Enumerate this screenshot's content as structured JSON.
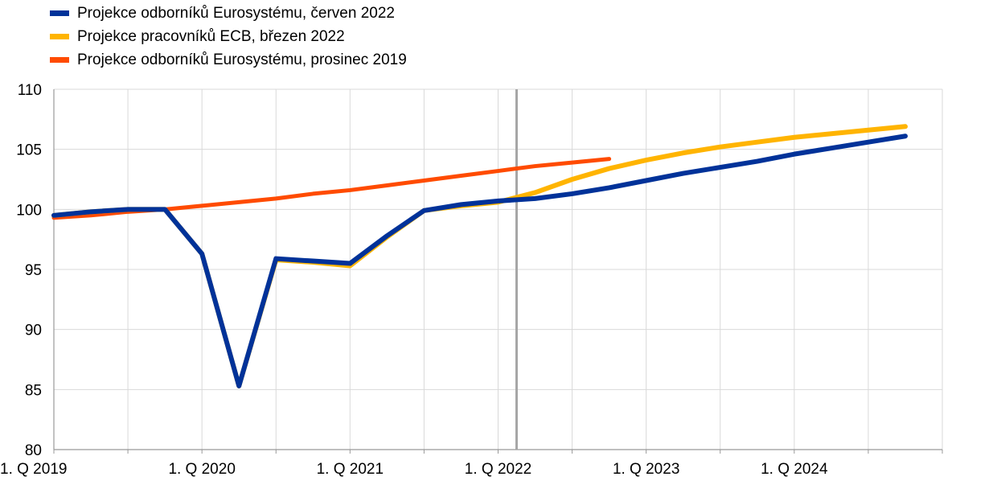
{
  "chart_data": {
    "type": "line",
    "x": [
      "2019Q1",
      "2019Q2",
      "2019Q3",
      "2019Q4",
      "2020Q1",
      "2020Q2",
      "2020Q3",
      "2020Q4",
      "2021Q1",
      "2021Q2",
      "2021Q3",
      "2021Q4",
      "2022Q1",
      "2022Q2",
      "2022Q3",
      "2022Q4",
      "2023Q1",
      "2023Q2",
      "2023Q3",
      "2023Q4",
      "2024Q1",
      "2024Q2",
      "2024Q3",
      "2024Q4"
    ],
    "x_tick_labels": [
      "1. Q 2019",
      "1. Q 2020",
      "1. Q 2021",
      "1. Q 2022",
      "1. Q 2023",
      "1. Q 2024"
    ],
    "y_tick_labels": [
      "80",
      "85",
      "90",
      "95",
      "100",
      "105",
      "110"
    ],
    "ylim": [
      80,
      110
    ],
    "vertical_marker_x": "2022Q2",
    "grid": true,
    "legend_position": "top-left",
    "series": [
      {
        "name": "Projekce odborníků Eurosystému, červen 2022",
        "color": "#003299",
        "values": [
          99.5,
          99.8,
          100.0,
          100.0,
          96.3,
          85.3,
          95.9,
          95.7,
          95.5,
          97.8,
          99.9,
          100.4,
          100.7,
          100.9,
          101.3,
          101.8,
          102.4,
          103.0,
          103.5,
          104.0,
          104.6,
          105.1,
          105.6,
          106.1
        ]
      },
      {
        "name": "Projekce pracovníků ECB, březen 2022",
        "color": "#FFB400",
        "values": [
          99.5,
          99.8,
          100.0,
          100.0,
          96.3,
          85.3,
          95.8,
          95.6,
          95.3,
          97.7,
          99.9,
          100.3,
          100.6,
          101.4,
          102.5,
          103.4,
          104.1,
          104.7,
          105.2,
          105.6,
          106.0,
          106.3,
          106.6,
          106.9
        ]
      },
      {
        "name": "Projekce odborníků Eurosystému, prosinec 2019",
        "color": "#FF4B00",
        "values": [
          99.3,
          99.5,
          99.8,
          100.0,
          100.3,
          100.6,
          100.9,
          101.3,
          101.6,
          102.0,
          102.4,
          102.8,
          103.2,
          103.6,
          103.9,
          104.2,
          null,
          null,
          null,
          null,
          null,
          null,
          null,
          null
        ]
      }
    ]
  }
}
